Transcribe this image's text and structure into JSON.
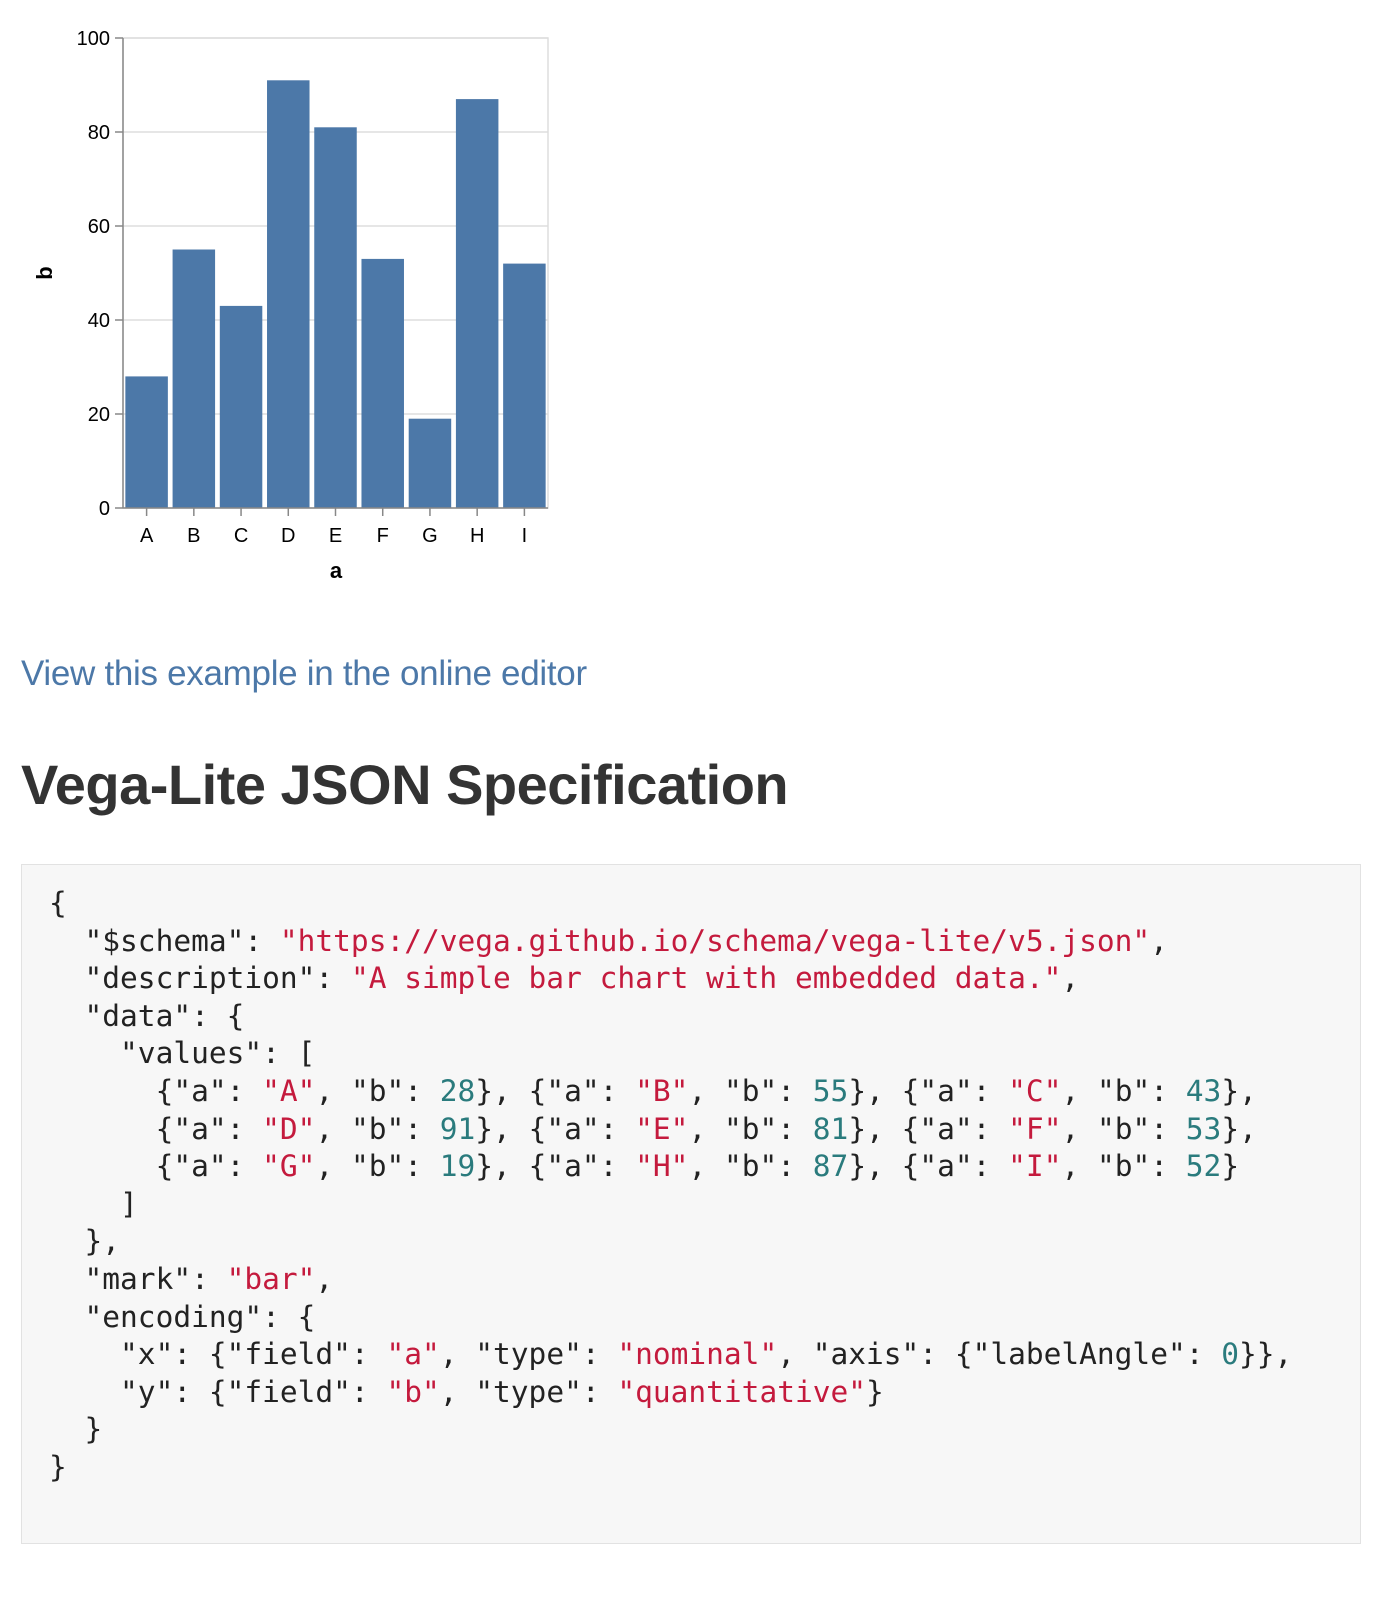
{
  "chart_data": {
    "type": "bar",
    "categories": [
      "A",
      "B",
      "C",
      "D",
      "E",
      "F",
      "G",
      "H",
      "I"
    ],
    "values": [
      28,
      55,
      43,
      91,
      81,
      53,
      19,
      87,
      52
    ],
    "xlabel": "a",
    "ylabel": "b",
    "ylim": [
      0,
      100
    ],
    "yticks": [
      "0",
      "20",
      "40",
      "60",
      "80",
      "100"
    ],
    "grid": true,
    "colors": {
      "bar": "#4c78a8",
      "grid": "#dddddd",
      "axis": "#888888"
    }
  },
  "link": {
    "label": "View this example in the online editor"
  },
  "heading": "Vega-Lite JSON Specification",
  "code": {
    "lines": [
      [
        [
          "p",
          "{"
        ]
      ],
      [
        [
          "p",
          "  \"$schema\": "
        ],
        [
          "s",
          "\"https://vega.github.io/schema/vega-lite/v5.json\""
        ],
        [
          "p",
          ","
        ]
      ],
      [
        [
          "p",
          "  \"description\": "
        ],
        [
          "s",
          "\"A simple bar chart with embedded data.\""
        ],
        [
          "p",
          ","
        ]
      ],
      [
        [
          "p",
          "  \"data\": {"
        ]
      ],
      [
        [
          "p",
          "    \"values\": ["
        ]
      ],
      [
        [
          "p",
          "      {\"a\": "
        ],
        [
          "s",
          "\"A\""
        ],
        [
          "p",
          ", \"b\": "
        ],
        [
          "n",
          "28"
        ],
        [
          "p",
          "}, {\"a\": "
        ],
        [
          "s",
          "\"B\""
        ],
        [
          "p",
          ", \"b\": "
        ],
        [
          "n",
          "55"
        ],
        [
          "p",
          "}, {\"a\": "
        ],
        [
          "s",
          "\"C\""
        ],
        [
          "p",
          ", \"b\": "
        ],
        [
          "n",
          "43"
        ],
        [
          "p",
          "},"
        ]
      ],
      [
        [
          "p",
          "      {\"a\": "
        ],
        [
          "s",
          "\"D\""
        ],
        [
          "p",
          ", \"b\": "
        ],
        [
          "n",
          "91"
        ],
        [
          "p",
          "}, {\"a\": "
        ],
        [
          "s",
          "\"E\""
        ],
        [
          "p",
          ", \"b\": "
        ],
        [
          "n",
          "81"
        ],
        [
          "p",
          "}, {\"a\": "
        ],
        [
          "s",
          "\"F\""
        ],
        [
          "p",
          ", \"b\": "
        ],
        [
          "n",
          "53"
        ],
        [
          "p",
          "},"
        ]
      ],
      [
        [
          "p",
          "      {\"a\": "
        ],
        [
          "s",
          "\"G\""
        ],
        [
          "p",
          ", \"b\": "
        ],
        [
          "n",
          "19"
        ],
        [
          "p",
          "}, {\"a\": "
        ],
        [
          "s",
          "\"H\""
        ],
        [
          "p",
          ", \"b\": "
        ],
        [
          "n",
          "87"
        ],
        [
          "p",
          "}, {\"a\": "
        ],
        [
          "s",
          "\"I\""
        ],
        [
          "p",
          ", \"b\": "
        ],
        [
          "n",
          "52"
        ],
        [
          "p",
          "}"
        ]
      ],
      [
        [
          "p",
          "    ]"
        ]
      ],
      [
        [
          "p",
          "  },"
        ]
      ],
      [
        [
          "p",
          "  \"mark\": "
        ],
        [
          "s",
          "\"bar\""
        ],
        [
          "p",
          ","
        ]
      ],
      [
        [
          "p",
          "  \"encoding\": {"
        ]
      ],
      [
        [
          "p",
          "    \"x\": {\"field\": "
        ],
        [
          "s",
          "\"a\""
        ],
        [
          "p",
          ", \"type\": "
        ],
        [
          "s",
          "\"nominal\""
        ],
        [
          "p",
          ", \"axis\": {\"labelAngle\": "
        ],
        [
          "n",
          "0"
        ],
        [
          "p",
          "}},"
        ]
      ],
      [
        [
          "p",
          "    \"y\": {\"field\": "
        ],
        [
          "s",
          "\"b\""
        ],
        [
          "p",
          ", \"type\": "
        ],
        [
          "s",
          "\"quantitative\""
        ],
        [
          "p",
          "}"
        ]
      ],
      [
        [
          "p",
          "  }"
        ]
      ],
      [
        [
          "p",
          "}"
        ]
      ]
    ]
  }
}
